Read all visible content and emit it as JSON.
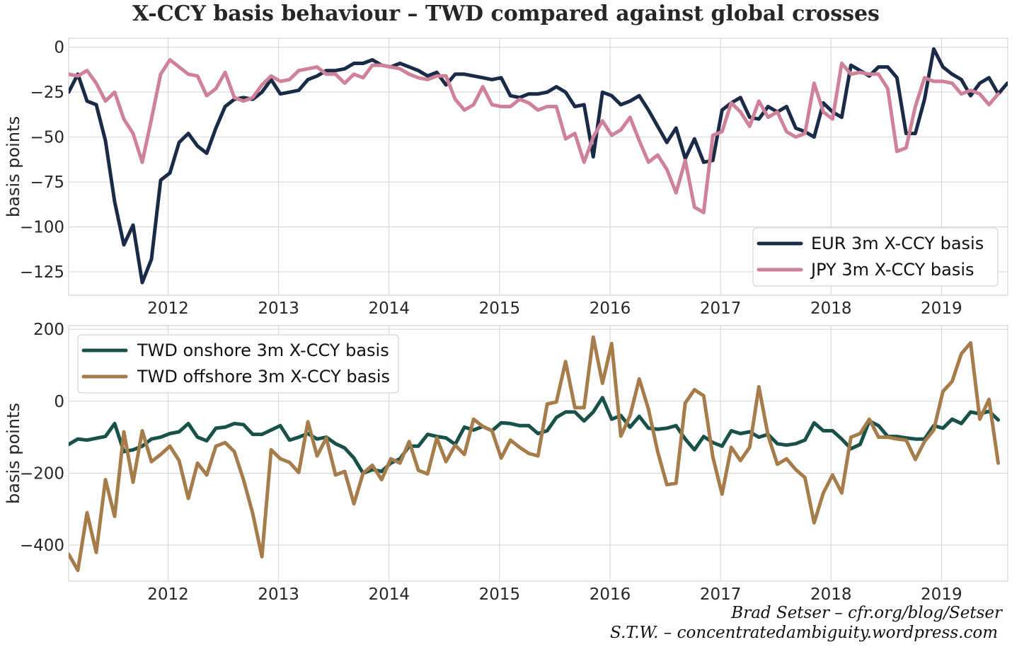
{
  "title": "X-CCY basis behaviour – TWD compared against global crosses",
  "credits": [
    "Brad Setser – cfr.org/blog/Setser",
    "S.T.W. – concentratedambiguity.wordpress.com"
  ],
  "colors": {
    "EUR": "#1a2b48",
    "JPY": "#cf8199",
    "TWD_on": "#17514a",
    "TWD_off": "#a67c4b",
    "grid": "#d4d4d4"
  },
  "chart_data": [
    {
      "type": "line",
      "ylabel": "basis points",
      "xlim": [
        2011.1,
        2019.6
      ],
      "ylim": [
        -138,
        5
      ],
      "yticks": [
        0,
        -25,
        -50,
        -75,
        -100,
        -125
      ],
      "ytick_labels": [
        "0",
        "−25",
        "−50",
        "−75",
        "−100",
        "−125"
      ],
      "xticks": [
        2012,
        2013,
        2014,
        2015,
        2016,
        2017,
        2018,
        2019
      ],
      "xtick_labels": [
        "2012",
        "2013",
        "2014",
        "2015",
        "2016",
        "2017",
        "2018",
        "2019"
      ],
      "legend_position": "lower-right",
      "x_start": 2011.1,
      "x_step": 0.0833,
      "series": [
        {
          "name": "EUR 3m X-CCY basis",
          "color_key": "EUR",
          "values": [
            -25,
            -15,
            -30,
            -32,
            -52,
            -86,
            -110,
            -99,
            -131,
            -118,
            -74,
            -70,
            -53,
            -48,
            -55,
            -59,
            -45,
            -33,
            -29,
            -28,
            -29,
            -25,
            -18,
            -26,
            -25,
            -24,
            -18,
            -16,
            -13,
            -13,
            -12,
            -9,
            -9,
            -7,
            -10,
            -11,
            -9,
            -11,
            -13,
            -16,
            -14,
            -21,
            -15,
            -15,
            -16,
            -17,
            -18,
            -17,
            -27,
            -28,
            -26,
            -26,
            -25,
            -22,
            -25,
            -33,
            -32,
            -61,
            -25,
            -27,
            -32,
            -30,
            -27,
            -35,
            -44,
            -53,
            -45,
            -62,
            -51,
            -64,
            -63,
            -35,
            -31,
            -28,
            -39,
            -40,
            -33,
            -36,
            -33,
            -45,
            -47,
            -50,
            -31,
            -36,
            -39,
            -10,
            -13,
            -16,
            -11,
            -11,
            -17,
            -48,
            -48,
            -29,
            -1,
            -11,
            -15,
            -18,
            -27,
            -20,
            -17,
            -26,
            -20
          ]
        },
        {
          "name": "JPY 3m X-CCY basis",
          "color_key": "JPY",
          "values": [
            -15,
            -16,
            -13,
            -20,
            -30,
            -25,
            -40,
            -48,
            -64,
            -40,
            -15,
            -7,
            -11,
            -15,
            -16,
            -27,
            -23,
            -14,
            -28,
            -30,
            -28,
            -21,
            -16,
            -19,
            -18,
            -13,
            -12,
            -11,
            -15,
            -15,
            -20,
            -15,
            -17,
            -10,
            -10,
            -11,
            -12,
            -15,
            -17,
            -18,
            -16,
            -16,
            -29,
            -35,
            -32,
            -22,
            -32,
            -33,
            -33,
            -29,
            -31,
            -35,
            -33,
            -33,
            -51,
            -48,
            -64,
            -50,
            -41,
            -49,
            -46,
            -39,
            -52,
            -64,
            -60,
            -68,
            -81,
            -63,
            -89,
            -92,
            -49,
            -47,
            -31,
            -36,
            -44,
            -30,
            -39,
            -36,
            -47,
            -50,
            -48,
            -20,
            -36,
            -40,
            -9,
            -15,
            -14,
            -15,
            -15,
            -23,
            -58,
            -56,
            -33,
            -17,
            -19,
            -19,
            -20,
            -26,
            -24,
            -26,
            -32,
            -26
          ]
        }
      ]
    },
    {
      "type": "line",
      "ylabel": "basis points",
      "xlim": [
        2011.1,
        2019.6
      ],
      "ylim": [
        -500,
        210
      ],
      "yticks": [
        200,
        0,
        -200,
        -400
      ],
      "ytick_labels": [
        "200",
        "0",
        "−200",
        "−400"
      ],
      "xticks": [
        2012,
        2013,
        2014,
        2015,
        2016,
        2017,
        2018,
        2019
      ],
      "xtick_labels": [
        "2012",
        "2013",
        "2014",
        "2015",
        "2016",
        "2017",
        "2018",
        "2019"
      ],
      "legend_position": "upper-left",
      "x_start": 2011.1,
      "x_step": 0.0833,
      "series": [
        {
          "name": "TWD onshore 3m X-CCY basis",
          "color_key": "TWD_on",
          "values": [
            -120,
            -105,
            -108,
            -103,
            -98,
            -62,
            -140,
            -135,
            -125,
            -105,
            -100,
            -90,
            -85,
            -62,
            -100,
            -110,
            -75,
            -72,
            -62,
            -65,
            -92,
            -92,
            -80,
            -68,
            -108,
            -100,
            -90,
            -105,
            -100,
            -118,
            -130,
            -158,
            -200,
            -190,
            -195,
            -172,
            -160,
            -125,
            -125,
            -92,
            -98,
            -102,
            -120,
            -72,
            -80,
            -70,
            -82,
            -60,
            -62,
            -68,
            -68,
            -90,
            -82,
            -45,
            -30,
            -30,
            -55,
            -30,
            10,
            -50,
            -40,
            -72,
            -42,
            -75,
            -78,
            -75,
            -68,
            -105,
            -135,
            -98,
            -115,
            -125,
            -82,
            -90,
            -85,
            -100,
            -92,
            -118,
            -122,
            -118,
            -108,
            -60,
            -82,
            -82,
            -105,
            -132,
            -120,
            -55,
            -68,
            -98,
            -98,
            -102,
            -105,
            -105,
            -68,
            -75,
            -50,
            -62,
            -30,
            -35,
            -28,
            -52
          ]
        },
        {
          "name": "TWD offshore 3m X-CCY basis",
          "color_key": "TWD_off",
          "values": [
            -425,
            -470,
            -310,
            -420,
            -218,
            -320,
            -85,
            -225,
            -82,
            -168,
            -148,
            -125,
            -165,
            -270,
            -172,
            -205,
            -125,
            -115,
            -140,
            -218,
            -312,
            -432,
            -135,
            -160,
            -170,
            -198,
            -57,
            -152,
            -102,
            -205,
            -195,
            -285,
            -200,
            -178,
            -218,
            -160,
            -172,
            -112,
            -192,
            -202,
            -102,
            -168,
            -122,
            -148,
            -50,
            -70,
            -82,
            -158,
            -108,
            -128,
            -145,
            -152,
            -8,
            -2,
            110,
            -18,
            -18,
            178,
            50,
            160,
            -97,
            -40,
            62,
            -22,
            -140,
            -232,
            -228,
            -5,
            32,
            15,
            -155,
            -258,
            -128,
            -165,
            -128,
            40,
            -95,
            -175,
            -160,
            -190,
            -212,
            -338,
            -255,
            -205,
            -255,
            -100,
            -90,
            -50,
            -100,
            -100,
            -105,
            -108,
            -162,
            -112,
            -80,
            27,
            55,
            132,
            162,
            -50,
            5,
            -172
          ]
        }
      ]
    }
  ]
}
